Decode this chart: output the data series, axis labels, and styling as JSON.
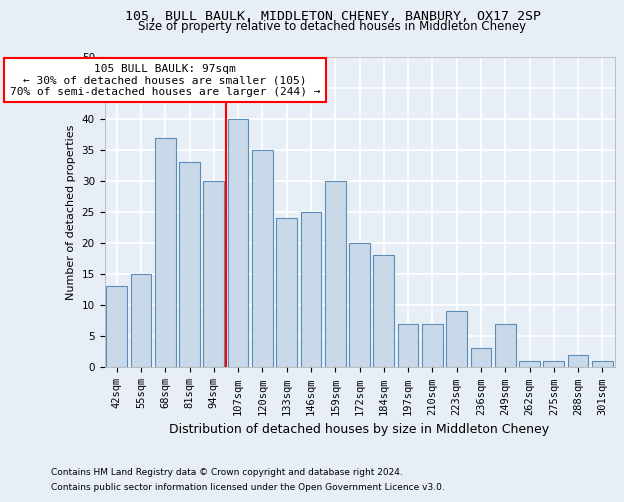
{
  "title1": "105, BULL BAULK, MIDDLETON CHENEY, BANBURY, OX17 2SP",
  "title2": "Size of property relative to detached houses in Middleton Cheney",
  "xlabel": "Distribution of detached houses by size in Middleton Cheney",
  "ylabel": "Number of detached properties",
  "footnote1": "Contains HM Land Registry data © Crown copyright and database right 2024.",
  "footnote2": "Contains public sector information licensed under the Open Government Licence v3.0.",
  "annotation_line1": "105 BULL BAULK: 97sqm",
  "annotation_line2": "← 30% of detached houses are smaller (105)",
  "annotation_line3": "70% of semi-detached houses are larger (244) →",
  "bar_labels": [
    "42sqm",
    "55sqm",
    "68sqm",
    "81sqm",
    "94sqm",
    "107sqm",
    "120sqm",
    "133sqm",
    "146sqm",
    "159sqm",
    "172sqm",
    "184sqm",
    "197sqm",
    "210sqm",
    "223sqm",
    "236sqm",
    "249sqm",
    "262sqm",
    "275sqm",
    "288sqm",
    "301sqm"
  ],
  "bar_values": [
    13,
    15,
    37,
    33,
    30,
    40,
    35,
    24,
    25,
    30,
    20,
    18,
    7,
    7,
    9,
    3,
    7,
    1,
    1,
    2,
    1
  ],
  "bar_color": "#c9d9ea",
  "bar_edge_color": "#5b8db8",
  "background_color": "#e8eef6",
  "grid_color": "#ffffff",
  "fig_background": "#e8eef6",
  "vline_x_index": 4.5,
  "vline_color": "red",
  "ylim": [
    0,
    50
  ],
  "yticks": [
    0,
    5,
    10,
    15,
    20,
    25,
    30,
    35,
    40,
    45,
    50
  ],
  "annotation_box_color": "white",
  "annotation_box_edge": "red",
  "title1_fontsize": 9.5,
  "title2_fontsize": 8.5,
  "xlabel_fontsize": 9,
  "ylabel_fontsize": 8,
  "tick_fontsize": 7.5,
  "annotation_fontsize": 8,
  "footnote_fontsize": 6.5
}
